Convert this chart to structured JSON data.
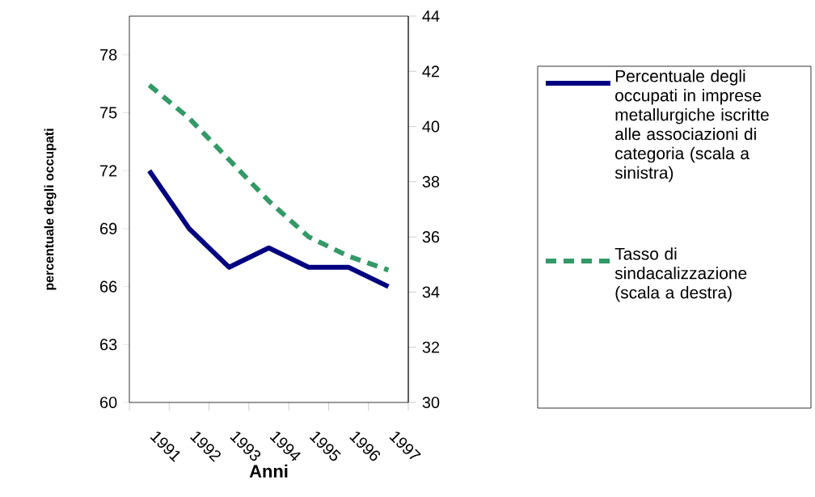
{
  "chart_data": {
    "type": "line",
    "xlabel": "Anni",
    "ylabel": "percentuale degli occupati",
    "categories": [
      "1991",
      "1992",
      "1993",
      "1994",
      "1995",
      "1996",
      "1997"
    ],
    "series": [
      {
        "name": "Percentuale degli occupati in imprese metallurgiche iscritte alle associazioni di categoria (scala a sinistra)",
        "color": "#000080",
        "values": [
          72,
          69,
          67,
          68,
          67,
          67,
          66
        ],
        "line_style": "solid"
      },
      {
        "name": "Tasso di sindacalizzazione (scala a destra)",
        "color": "#339966",
        "values": [
          41.5,
          40.3,
          38.8,
          37.3,
          36.0,
          35.3,
          34.8
        ],
        "axis": "y2",
        "line_style": "dashed"
      }
    ],
    "ylim": [
      60,
      80
    ],
    "yticks": [
      60,
      63,
      66,
      69,
      72,
      75,
      78
    ],
    "y2lim": [
      30,
      44
    ],
    "y2ticks": [
      30,
      32,
      34,
      36,
      38,
      40,
      42,
      44
    ],
    "grid": false,
    "legend": "right",
    "marker": "none"
  }
}
